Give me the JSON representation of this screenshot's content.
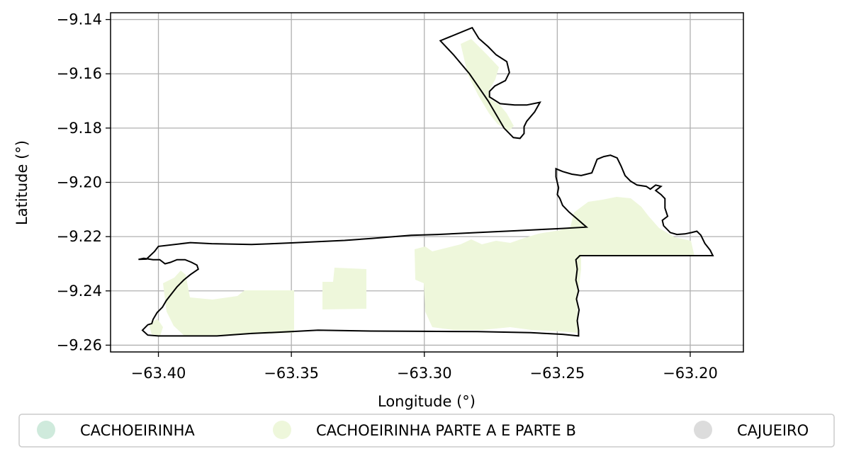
{
  "chart_data": {
    "type": "map",
    "xlabel": "Longitude (°)",
    "ylabel": "Latitude (°)",
    "xlim": [
      -63.418,
      -63.18
    ],
    "ylim": [
      -9.2625,
      -9.1375
    ],
    "grid": true,
    "x_ticks": [
      -63.4,
      -63.35,
      -63.3,
      -63.25,
      -63.2
    ],
    "x_tick_labels": [
      "−63.40",
      "−63.35",
      "−63.30",
      "−63.25",
      "−63.20"
    ],
    "y_ticks": [
      -9.14,
      -9.16,
      -9.18,
      -9.2,
      -9.22,
      -9.24,
      -9.26
    ],
    "y_tick_labels": [
      "−9.14",
      "−9.16",
      "−9.18",
      "−9.20",
      "−9.22",
      "−9.24",
      "−9.26"
    ],
    "legend_position": "bottom-center",
    "legend": [
      {
        "label": "CACHOEIRINHA",
        "color": "#cfeadc"
      },
      {
        "label": "CACHOEIRINHA PARTE A E PARTE B",
        "color": "#eef7db"
      },
      {
        "label": "CAJUEIRO",
        "color": "#dcdcdc"
      }
    ],
    "outline_color": "#000000",
    "fill_color": "#eef7db",
    "boundary_main": [
      [
        -63.4075,
        -9.2284
      ],
      [
        -63.4045,
        -9.2283
      ],
      [
        -63.4015,
        -9.2255
      ],
      [
        -63.4,
        -9.2236
      ],
      [
        -63.388,
        -9.2222
      ],
      [
        -63.38,
        -9.2226
      ],
      [
        -63.365,
        -9.2229
      ],
      [
        -63.35,
        -9.2223
      ],
      [
        -63.33,
        -9.2214
      ],
      [
        -63.32,
        -9.2207
      ],
      [
        -63.305,
        -9.2195
      ],
      [
        -63.295,
        -9.2192
      ],
      [
        -63.28,
        -9.2185
      ],
      [
        -63.265,
        -9.2178
      ],
      [
        -63.25,
        -9.2171
      ],
      [
        -63.239,
        -9.2165
      ],
      [
        -63.2425,
        -9.2135
      ],
      [
        -63.2455,
        -9.211
      ],
      [
        -63.248,
        -9.2085
      ],
      [
        -63.249,
        -9.206
      ],
      [
        -63.25,
        -9.2045
      ],
      [
        -63.2495,
        -9.202
      ],
      [
        -63.2505,
        -9.198
      ],
      [
        -63.2505,
        -9.195
      ],
      [
        -63.248,
        -9.196
      ],
      [
        -63.2445,
        -9.197
      ],
      [
        -63.241,
        -9.1975
      ],
      [
        -63.237,
        -9.1965
      ],
      [
        -63.236,
        -9.194
      ],
      [
        -63.235,
        -9.1915
      ],
      [
        -63.2325,
        -9.1905
      ],
      [
        -63.23,
        -9.19
      ],
      [
        -63.2275,
        -9.191
      ],
      [
        -63.226,
        -9.194
      ],
      [
        -63.2245,
        -9.1975
      ],
      [
        -63.2225,
        -9.1995
      ],
      [
        -63.22,
        -9.201
      ],
      [
        -63.2165,
        -9.2015
      ],
      [
        -63.215,
        -9.2025
      ],
      [
        -63.213,
        -9.201
      ],
      [
        -63.211,
        -9.2015
      ],
      [
        -63.213,
        -9.203
      ],
      [
        -63.211,
        -9.2045
      ],
      [
        -63.2095,
        -9.206
      ],
      [
        -63.2095,
        -9.2095
      ],
      [
        -63.2085,
        -9.2125
      ],
      [
        -63.2105,
        -9.214
      ],
      [
        -63.21,
        -9.216
      ],
      [
        -63.2075,
        -9.2185
      ],
      [
        -63.205,
        -9.2192
      ],
      [
        -63.202,
        -9.219
      ],
      [
        -63.1995,
        -9.2185
      ],
      [
        -63.1975,
        -9.218
      ],
      [
        -63.196,
        -9.2195
      ],
      [
        -63.1945,
        -9.2225
      ],
      [
        -63.1925,
        -9.225
      ],
      [
        -63.1915,
        -9.227
      ],
      [
        -63.198,
        -9.227
      ],
      [
        -63.21,
        -9.227
      ],
      [
        -63.225,
        -9.227
      ],
      [
        -63.2415,
        -9.227
      ],
      [
        -63.243,
        -9.2285
      ],
      [
        -63.2425,
        -9.232
      ],
      [
        -63.243,
        -9.236
      ],
      [
        -63.242,
        -9.24
      ],
      [
        -63.2428,
        -9.243
      ],
      [
        -63.2418,
        -9.247
      ],
      [
        -63.2425,
        -9.251
      ],
      [
        -63.242,
        -9.2545
      ],
      [
        -63.242,
        -9.2566
      ],
      [
        -63.248,
        -9.256
      ],
      [
        -63.26,
        -9.2554
      ],
      [
        -63.28,
        -9.255
      ],
      [
        -63.3,
        -9.2549
      ],
      [
        -63.32,
        -9.2548
      ],
      [
        -63.34,
        -9.2545
      ],
      [
        -63.35,
        -9.255
      ],
      [
        -63.365,
        -9.2557
      ],
      [
        -63.378,
        -9.2566
      ],
      [
        -63.39,
        -9.2566
      ],
      [
        -63.4,
        -9.2566
      ],
      [
        -63.404,
        -9.2563
      ],
      [
        -63.406,
        -9.2545
      ],
      [
        -63.404,
        -9.2525
      ],
      [
        -63.4025,
        -9.252
      ],
      [
        -63.402,
        -9.2505
      ],
      [
        -63.4005,
        -9.248
      ],
      [
        -63.3985,
        -9.246
      ],
      [
        -63.397,
        -9.2435
      ],
      [
        -63.395,
        -9.241
      ],
      [
        -63.393,
        -9.2385
      ],
      [
        -63.3905,
        -9.236
      ],
      [
        -63.388,
        -9.234
      ],
      [
        -63.385,
        -9.232
      ],
      [
        -63.3855,
        -9.2305
      ],
      [
        -63.3875,
        -9.2295
      ],
      [
        -63.39,
        -9.2285
      ],
      [
        -63.393,
        -9.2285
      ],
      [
        -63.3955,
        -9.2295
      ],
      [
        -63.3975,
        -9.23
      ],
      [
        -63.3995,
        -9.2285
      ],
      [
        -63.402,
        -9.2285
      ],
      [
        -63.4055,
        -9.228
      ]
    ],
    "boundary_north": [
      [
        -63.294,
        -9.1478
      ],
      [
        -63.282,
        -9.143
      ],
      [
        -63.2795,
        -9.147
      ],
      [
        -63.276,
        -9.15
      ],
      [
        -63.273,
        -9.153
      ],
      [
        -63.269,
        -9.1555
      ],
      [
        -63.268,
        -9.1595
      ],
      [
        -63.2695,
        -9.1625
      ],
      [
        -63.2735,
        -9.1645
      ],
      [
        -63.2755,
        -9.1665
      ],
      [
        -63.2755,
        -9.1685
      ],
      [
        -63.2715,
        -9.171
      ],
      [
        -63.266,
        -9.1715
      ],
      [
        -63.2615,
        -9.1715
      ],
      [
        -63.2565,
        -9.1705
      ],
      [
        -63.2585,
        -9.174
      ],
      [
        -63.2615,
        -9.1775
      ],
      [
        -63.2625,
        -9.1795
      ],
      [
        -63.2625,
        -9.182
      ],
      [
        -63.264,
        -9.1838
      ],
      [
        -63.2665,
        -9.1835
      ],
      [
        -63.27,
        -9.18
      ],
      [
        -63.276,
        -9.17
      ],
      [
        -63.283,
        -9.16
      ],
      [
        -63.289,
        -9.153
      ]
    ]
  }
}
